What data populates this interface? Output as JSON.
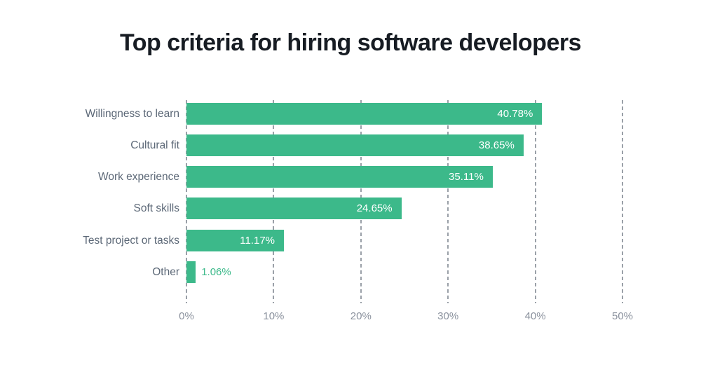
{
  "title": "Top criteria for hiring software developers",
  "colors": {
    "bar": "#3cb98a",
    "title_text": "#171c23",
    "category_label": "#5c6877",
    "tick_label": "#8a919d",
    "gridline": "#9aa0a8",
    "value_label_inside": "#ffffff",
    "background": "#ffffff"
  },
  "chart_data": {
    "type": "bar",
    "orientation": "horizontal",
    "title": "Top criteria for hiring software developers",
    "categories": [
      "Willingness to learn",
      "Cultural fit",
      "Work experience",
      "Soft skills",
      "Test project or tasks",
      "Other"
    ],
    "values": [
      40.78,
      38.65,
      35.11,
      24.65,
      11.17,
      1.06
    ],
    "value_labels": [
      "40.78%",
      "38.65%",
      "35.11%",
      "24.65%",
      "11.17%",
      "1.06%"
    ],
    "xlabel": "",
    "ylabel": "",
    "xlim": [
      0,
      50
    ],
    "x_ticks": [
      0,
      10,
      20,
      30,
      40,
      50
    ],
    "x_tick_labels": [
      "0%",
      "10%",
      "20%",
      "30%",
      "40%",
      "50%"
    ],
    "grid": "vertical-dashed",
    "legend": "none",
    "value_label_position": "inside-end, outside-end for smallest bar"
  }
}
